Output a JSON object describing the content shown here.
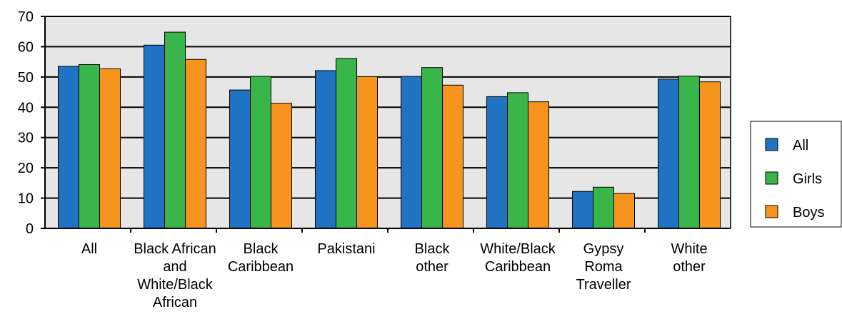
{
  "chart_data": {
    "type": "bar",
    "title": "",
    "xlabel": "",
    "ylabel": "",
    "ylim": [
      0,
      70
    ],
    "y_ticks": [
      0,
      10,
      20,
      30,
      40,
      50,
      60,
      70
    ],
    "grid": true,
    "legend_position": "right",
    "categories": [
      [
        "All"
      ],
      [
        "Black African",
        "and",
        "White/Black",
        "African"
      ],
      [
        "Black",
        "Caribbean"
      ],
      [
        "Pakistani"
      ],
      [
        "Black",
        "other"
      ],
      [
        "White/Black",
        "Caribbean"
      ],
      [
        "Gypsy",
        "Roma",
        "Traveller"
      ],
      [
        "White",
        "other"
      ]
    ],
    "series": [
      {
        "name": "All",
        "color": "#1f73c2",
        "values": [
          53.5,
          60.5,
          45.7,
          52.1,
          50.2,
          43.5,
          12.2,
          49.3
        ]
      },
      {
        "name": "Girls",
        "color": "#3ab54a",
        "values": [
          54.1,
          64.8,
          50.2,
          56.1,
          53.1,
          44.8,
          13.6,
          50.3
        ]
      },
      {
        "name": "Boys",
        "color": "#f7941d",
        "values": [
          52.7,
          55.8,
          41.3,
          50.1,
          47.3,
          41.8,
          11.5,
          48.4
        ]
      }
    ],
    "plot_background": "#e6e6e6"
  }
}
